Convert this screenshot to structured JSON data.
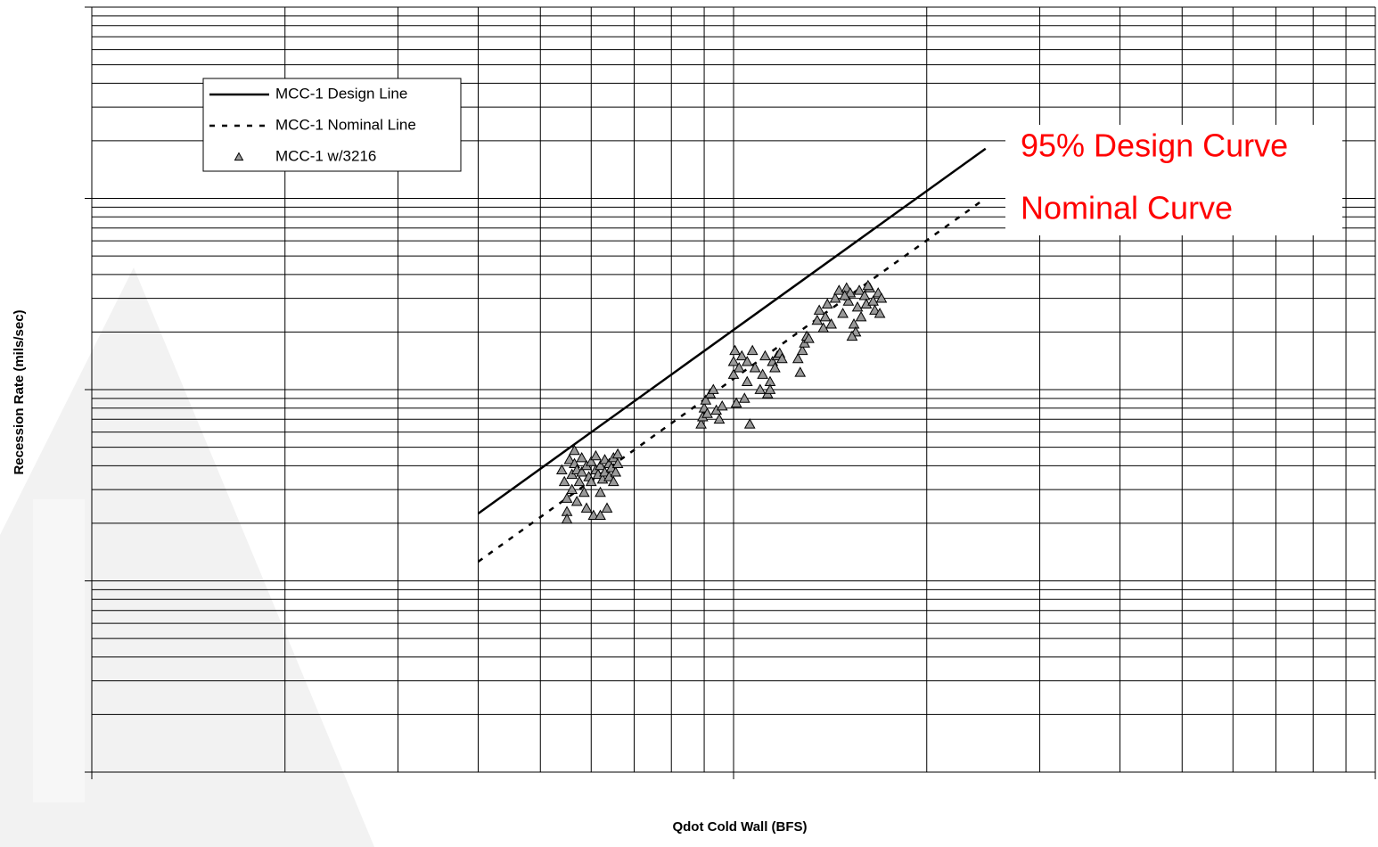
{
  "chart_data": {
    "type": "scatter",
    "xlabel": "Qdot Cold Wall (BFS)",
    "ylabel": "Recession Rate (mils/sec)",
    "xscale": "log",
    "yscale": "log",
    "xlim": [
      1,
      100
    ],
    "xticks": [
      1,
      2,
      3,
      4,
      5,
      6,
      7,
      8,
      9,
      10,
      20,
      30,
      40,
      50,
      60,
      70,
      80,
      90,
      100
    ],
    "ylim": [
      0.01,
      100
    ],
    "yticks": [
      0.01,
      0.02,
      0.03,
      0.04,
      0.05,
      0.06,
      0.07,
      0.08,
      0.09,
      0.1,
      0.2,
      0.3,
      0.4,
      0.5,
      0.6,
      0.7,
      0.8,
      0.9,
      1,
      2,
      3,
      4,
      5,
      6,
      7,
      8,
      9,
      10,
      20,
      30,
      40,
      50,
      60,
      70,
      80,
      90,
      100
    ],
    "grid": true,
    "legend": "upper left",
    "annotations": [
      {
        "text": "95% Design Curve",
        "color": "#ff0000"
      },
      {
        "text": "Nominal Curve",
        "color": "#ff0000"
      }
    ],
    "series": [
      {
        "name": "MCC-1 Design Line",
        "type": "line",
        "dash": "solid",
        "color": "#000000",
        "x": [
          4.0,
          24.7
        ],
        "values": [
          0.225,
          18.2
        ]
      },
      {
        "name": "MCC-1 Nominal Line",
        "type": "line",
        "dash": "dashed",
        "color": "#000000",
        "x": [
          4.0,
          24.4
        ],
        "values": [
          0.126,
          9.73
        ]
      },
      {
        "name": "MCC-1 w/3216",
        "type": "scatter",
        "color": "#999999",
        "x": [
          5.4,
          5.45,
          5.5,
          5.5,
          5.55,
          5.6,
          5.6,
          5.65,
          5.7,
          5.7,
          5.75,
          5.8,
          5.8,
          5.85,
          5.9,
          5.9,
          5.95,
          6.0,
          6.0,
          6.05,
          6.1,
          6.1,
          6.15,
          6.2,
          6.2,
          6.25,
          6.3,
          6.3,
          6.35,
          6.4,
          6.4,
          6.45,
          6.5,
          6.5,
          6.55,
          6.6,
          6.6,
          5.5,
          6.2,
          5.65,
          8.9,
          8.95,
          9.0,
          9.05,
          9.1,
          9.2,
          9.3,
          9.4,
          9.5,
          9.6,
          10.0,
          10.0,
          10.05,
          10.1,
          10.2,
          10.3,
          10.4,
          10.5,
          10.5,
          10.6,
          10.7,
          10.8,
          11.0,
          11.1,
          11.2,
          11.3,
          11.4,
          11.5,
          11.6,
          11.7,
          11.8,
          11.9,
          11.4,
          12.6,
          12.7,
          12.8,
          12.9,
          13.0,
          13.1,
          13.5,
          13.6,
          13.8,
          14.0,
          14.2,
          14.4,
          14.6,
          14.8,
          15.0,
          15.1,
          15.2,
          15.4,
          15.6,
          15.7,
          15.8,
          16.0,
          16.1,
          16.3,
          16.5,
          16.6,
          16.8,
          17.0,
          16.9,
          15.5,
          15.3,
          16.2,
          14.9,
          13.9
        ],
        "values": [
          0.38,
          0.33,
          0.27,
          0.23,
          0.43,
          0.36,
          0.3,
          0.41,
          0.38,
          0.26,
          0.33,
          0.44,
          0.37,
          0.29,
          0.24,
          0.4,
          0.35,
          0.42,
          0.33,
          0.22,
          0.38,
          0.45,
          0.36,
          0.29,
          0.4,
          0.34,
          0.43,
          0.37,
          0.24,
          0.41,
          0.35,
          0.39,
          0.33,
          0.44,
          0.37,
          0.41,
          0.46,
          0.21,
          0.22,
          0.48,
          0.66,
          0.72,
          0.8,
          0.88,
          0.75,
          0.95,
          1.0,
          0.78,
          0.7,
          0.82,
          1.2,
          1.4,
          1.6,
          0.85,
          1.3,
          1.5,
          0.9,
          1.1,
          1.4,
          0.66,
          1.6,
          1.3,
          1.0,
          1.2,
          1.5,
          0.95,
          1.1,
          1.4,
          1.3,
          1.5,
          1.55,
          1.45,
          1.0,
          1.45,
          1.23,
          1.6,
          1.75,
          1.9,
          1.85,
          2.3,
          2.6,
          2.1,
          2.8,
          2.2,
          3.0,
          3.3,
          2.5,
          3.4,
          2.9,
          3.2,
          2.2,
          2.7,
          3.3,
          2.4,
          3.1,
          2.8,
          3.4,
          2.9,
          2.6,
          3.2,
          3.0,
          2.5,
          2.0,
          1.9,
          3.5,
          3.1,
          2.4
        ]
      }
    ]
  }
}
